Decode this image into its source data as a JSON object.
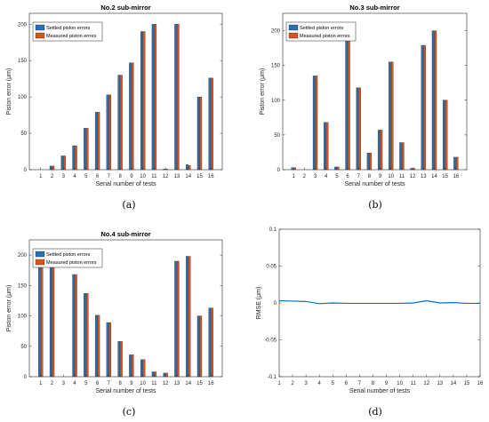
{
  "chart_data": [
    {
      "type": "bar",
      "title": "No.2 sub-mirror",
      "xlabel": "Serial number of tests",
      "ylabel": "Piston error (μm)",
      "caption": "(a)",
      "categories": [
        "1",
        "2",
        "3",
        "4",
        "5",
        "6",
        "7",
        "8",
        "9",
        "10",
        "11",
        "12",
        "13",
        "14",
        "15",
        "16"
      ],
      "ylim": [
        0,
        215
      ],
      "yticks": [
        0,
        50,
        100,
        150,
        200
      ],
      "legend_position": "top-left",
      "series": [
        {
          "name": "Settled piston errors",
          "color": "#2a6fb0",
          "values": [
            0,
            5,
            19,
            33,
            57,
            79,
            103,
            130,
            147,
            190,
            200,
            1,
            200,
            7,
            100,
            126
          ]
        },
        {
          "name": "Measured piston errors",
          "color": "#d8531e",
          "values": [
            0,
            5,
            19,
            33,
            57,
            79,
            103,
            130,
            147,
            190,
            200,
            1,
            200,
            6,
            100,
            126
          ]
        }
      ]
    },
    {
      "type": "bar",
      "title": "No.3 sub-mirror",
      "xlabel": "Serial number of tests",
      "ylabel": "Piston error (μm)",
      "caption": "(b)",
      "categories": [
        "1",
        "2",
        "3",
        "4",
        "5",
        "6",
        "7",
        "8",
        "9",
        "10",
        "11",
        "12",
        "13",
        "14",
        "15",
        "16"
      ],
      "ylim": [
        0,
        225
      ],
      "yticks": [
        0,
        50,
        100,
        150,
        200
      ],
      "legend_position": "top-left",
      "series": [
        {
          "name": "Settled piston errors",
          "color": "#2a6fb0",
          "values": [
            3,
            0,
            135,
            68,
            4,
            190,
            118,
            24,
            57,
            155,
            39,
            2,
            179,
            200,
            100,
            18
          ]
        },
        {
          "name": "Measured piston errors",
          "color": "#d8531e",
          "values": [
            3,
            0,
            135,
            68,
            4,
            190,
            118,
            24,
            57,
            155,
            39,
            2,
            179,
            200,
            100,
            18
          ]
        }
      ]
    },
    {
      "type": "bar",
      "title": "No.4 sub-mirror",
      "xlabel": "Serial number of tests",
      "ylabel": "Piston error (μm)",
      "caption": "(c)",
      "categories": [
        "1",
        "2",
        "3",
        "4",
        "5",
        "6",
        "7",
        "8",
        "9",
        "10",
        "11",
        "12",
        "13",
        "14",
        "15",
        "16"
      ],
      "ylim": [
        0,
        225
      ],
      "yticks": [
        0,
        50,
        100,
        150,
        200
      ],
      "legend_position": "top-left",
      "series": [
        {
          "name": "Settled piston errors",
          "color": "#2a6fb0",
          "values": [
            200,
            180,
            0,
            168,
            137,
            101,
            89,
            58,
            36,
            28,
            8,
            6,
            190,
            198,
            100,
            113
          ]
        },
        {
          "name": "Measured piston errors",
          "color": "#d8531e",
          "values": [
            200,
            180,
            0,
            168,
            137,
            101,
            89,
            58,
            36,
            28,
            8,
            6,
            190,
            198,
            100,
            113
          ]
        }
      ]
    },
    {
      "type": "line",
      "title": "",
      "xlabel": "Serial number of tests",
      "ylabel": "RMSE (μm)",
      "caption": "(d)",
      "categories": [
        "1",
        "2",
        "3",
        "4",
        "5",
        "6",
        "7",
        "8",
        "9",
        "10",
        "11",
        "12",
        "13",
        "14",
        "15",
        "16"
      ],
      "ylim": [
        -0.1,
        0.1
      ],
      "yticks": [
        -0.1,
        -0.05,
        0,
        0.05,
        0.1
      ],
      "ytick_labels": [
        "-0.1",
        "-0.05",
        "0",
        "0.05",
        "0.1"
      ],
      "series": [
        {
          "color": "#0072bd",
          "values": [
            0.003,
            0.0025,
            0.002,
            -0.001,
            0.0,
            -0.0005,
            -0.0005,
            -0.0005,
            -0.0005,
            -0.0005,
            0.0,
            0.003,
            0.0,
            0.0005,
            -0.0005,
            -0.0005
          ]
        }
      ]
    }
  ]
}
